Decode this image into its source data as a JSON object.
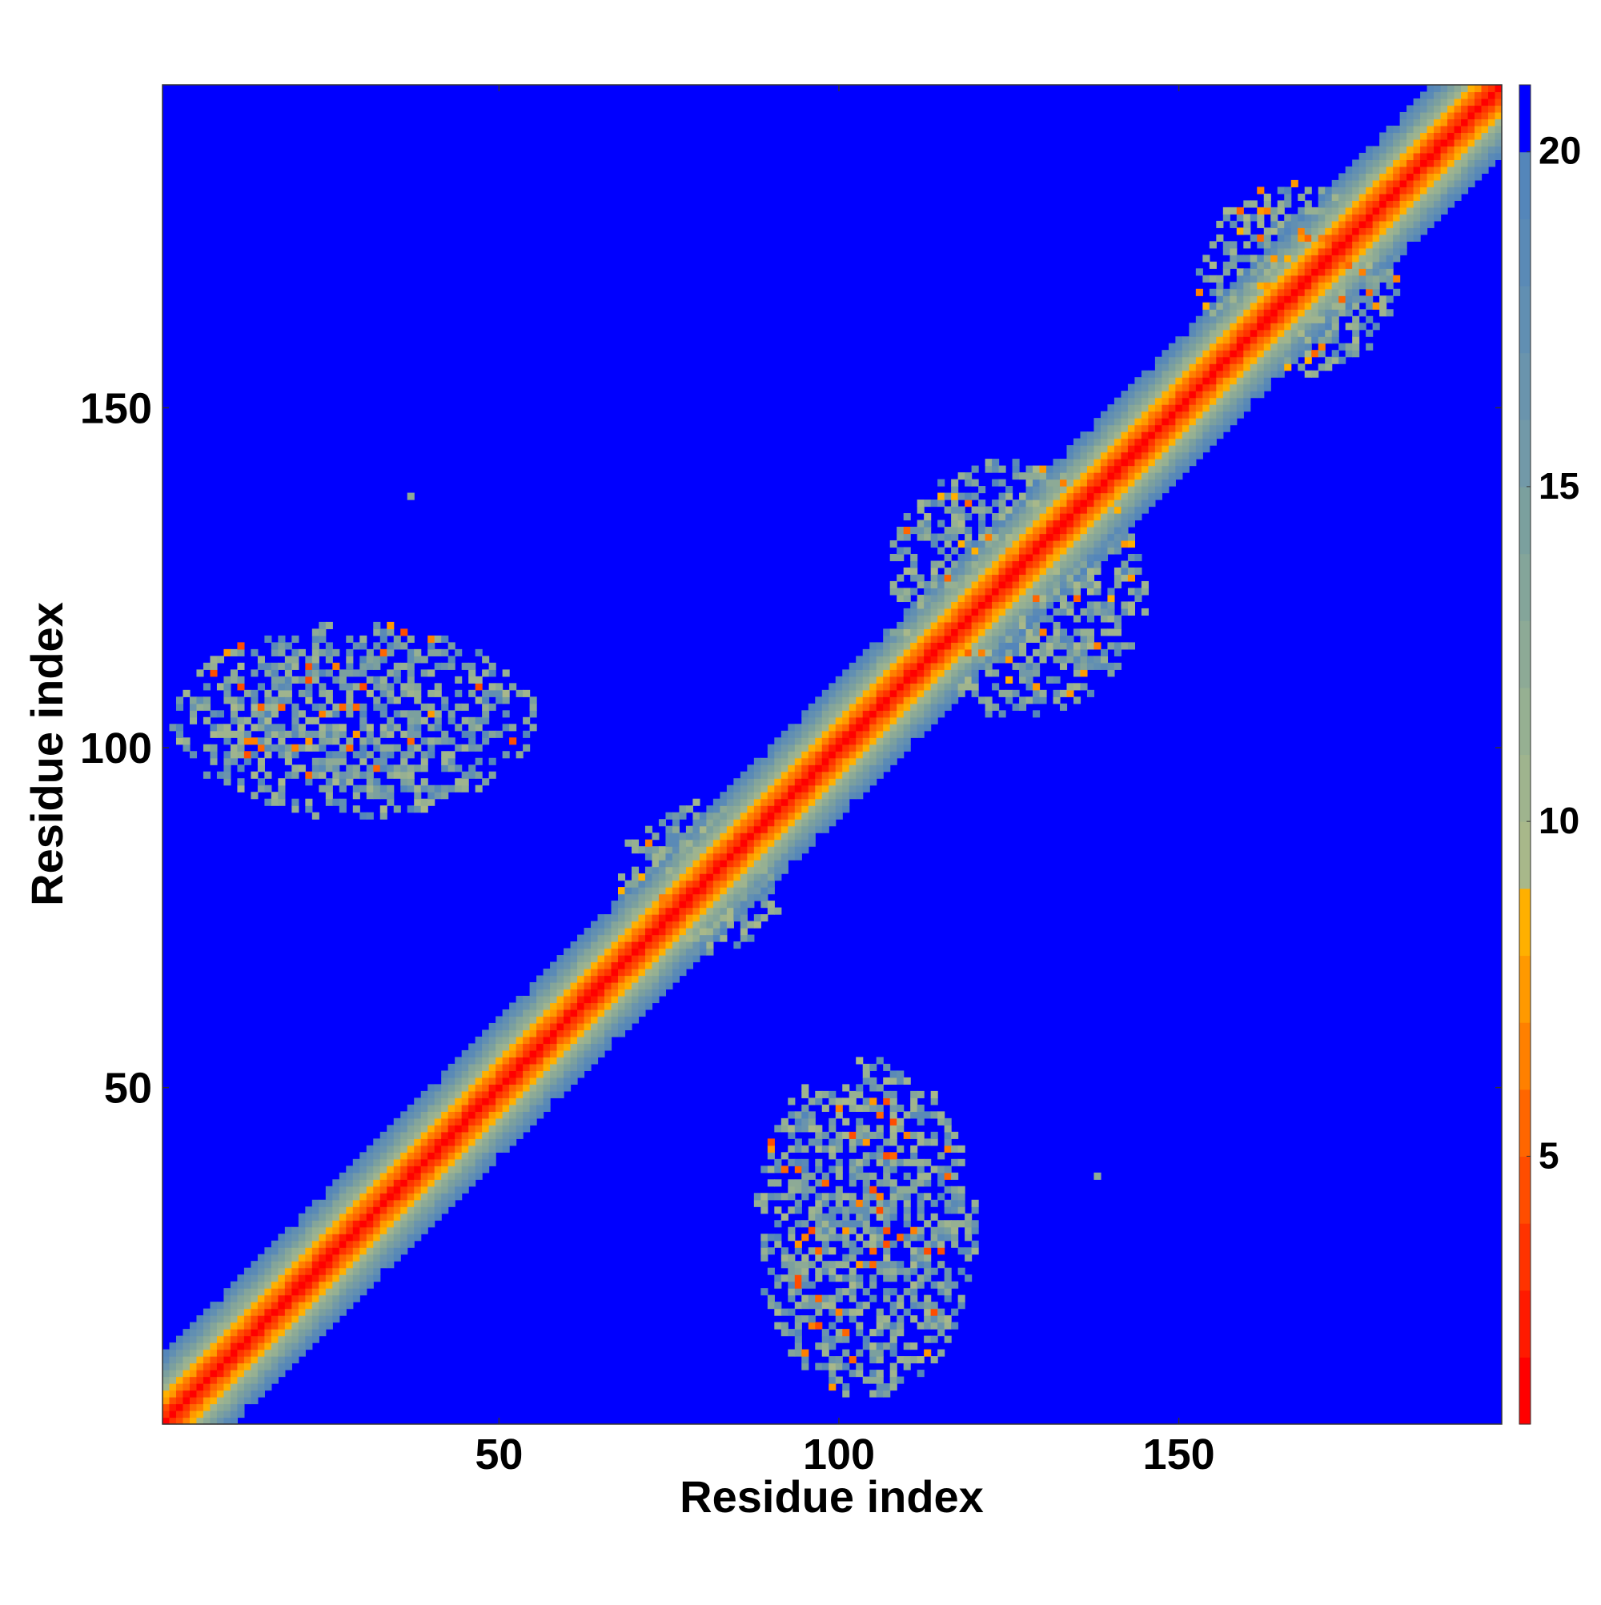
{
  "chart_data": {
    "type": "heatmap",
    "title": "",
    "xlabel": "Residue index",
    "ylabel": "Residue index",
    "n_residues": 197,
    "xlim": [
      1,
      197
    ],
    "ylim": [
      1,
      197
    ],
    "x_ticks": [
      50,
      100,
      150
    ],
    "y_ticks": [
      50,
      100,
      150
    ],
    "colorbar": {
      "range": [
        1,
        21
      ],
      "ticks": [
        5,
        10,
        15,
        20
      ],
      "boundaries": [
        1,
        2,
        3,
        4,
        5,
        6,
        7,
        8,
        9,
        10,
        11,
        12,
        13,
        14,
        15,
        16,
        17,
        18,
        19,
        20,
        21
      ],
      "colors": [
        "#ff0000",
        "#ff1a00",
        "#ff3300",
        "#ff4d00",
        "#ff6600",
        "#ff8000",
        "#ff9900",
        "#ffb000",
        "#a8b88a",
        "#9fb48e",
        "#96b092",
        "#8daa96",
        "#84a59a",
        "#7ba09e",
        "#7299a8",
        "#6a94ad",
        "#618fb2",
        "#5a8ab6",
        "#5486ba",
        "#0000ff"
      ]
    },
    "cutoff": 20,
    "background_value": 21,
    "contact_regions": [
      {
        "name": "diagonal band",
        "from": [
          1,
          1
        ],
        "to": [
          197,
          197
        ],
        "width_residues": 10
      },
      {
        "name": "cross contact cluster",
        "x_range": [
          2,
          55
        ],
        "y_range": [
          90,
          118
        ],
        "min_distance": 4
      },
      {
        "name": "cross contact cluster",
        "x_range": [
          88,
          120
        ],
        "y_range": [
          5,
          54
        ],
        "min_distance": 4
      },
      {
        "name": "local cluster",
        "x_range": [
          68,
          92
        ],
        "y_range": [
          70,
          92
        ],
        "min_distance": 6
      },
      {
        "name": "local cluster",
        "x_range": [
          107,
          145
        ],
        "y_range": [
          105,
          142
        ],
        "min_distance": 5
      },
      {
        "name": "local cluster",
        "x_range": [
          153,
          182
        ],
        "y_range": [
          155,
          183
        ],
        "min_distance": 5
      },
      {
        "name": "isolated contact",
        "x": 37,
        "y": 137
      },
      {
        "name": "isolated contact",
        "x": 138,
        "y": 37
      }
    ]
  }
}
